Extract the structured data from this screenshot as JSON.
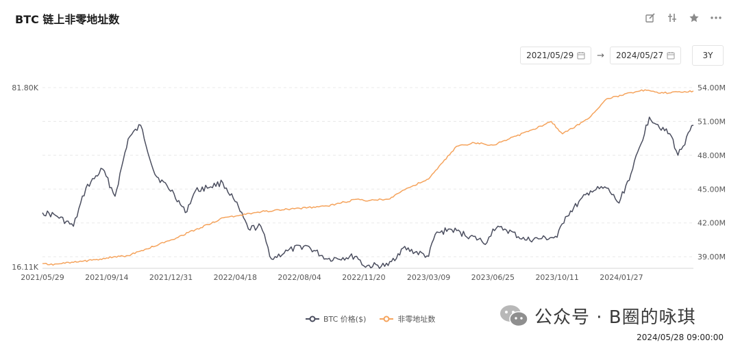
{
  "header": {
    "title": "BTC 链上非零地址数"
  },
  "toolbar": {
    "icons": [
      "edit-icon",
      "compare-icon",
      "star-icon",
      "more-icon"
    ]
  },
  "range": {
    "start": "2021/05/29",
    "end": "2024/05/27",
    "arrow": "→",
    "period": "3Y"
  },
  "legend": {
    "btc": "BTC 价格($)",
    "addr": "非零地址数"
  },
  "watermark": {
    "text": "公众号 · B圈的咏琪"
  },
  "timestamp": "2024/05/28 09:00:00",
  "colors": {
    "btc": "#4a4d5e",
    "addr": "#f5a35c",
    "grid": "#e8e8e8",
    "axis_text": "#555555"
  },
  "chart_data": {
    "type": "line",
    "x_tick_labels": [
      "2021/05/29",
      "2021/09/14",
      "2021/12/31",
      "2022/04/18",
      "2022/08/04",
      "2022/11/20",
      "2023/03/09",
      "2023/06/25",
      "2023/10/11",
      "2024/01/27"
    ],
    "left_axis": {
      "tick_labels": [
        "81.80K",
        "16.11K"
      ],
      "range": [
        16110,
        81800
      ]
    },
    "right_axis": {
      "tick_labels": [
        "54.00M",
        "51.00M",
        "48.00M",
        "45.00M",
        "42.00M",
        "39.00M"
      ],
      "range": [
        38100000,
        54000000
      ]
    },
    "grid": true,
    "legend_position": "bottom",
    "series": [
      {
        "name": "BTC 价格($)",
        "axis": "left",
        "x": [
          "2021/05/29",
          "2021/06/20",
          "2021/07/20",
          "2021/08/10",
          "2021/09/07",
          "2021/09/28",
          "2021/10/20",
          "2021/11/10",
          "2021/12/04",
          "2022/01/05",
          "2022/01/24",
          "2022/02/10",
          "2022/03/28",
          "2022/04/18",
          "2022/05/10",
          "2022/05/31",
          "2022/06/18",
          "2022/07/15",
          "2022/08/14",
          "2022/09/20",
          "2022/11/08",
          "2022/11/20",
          "2022/12/31",
          "2023/01/25",
          "2023/03/09",
          "2023/03/20",
          "2023/04/14",
          "2023/06/15",
          "2023/06/25",
          "2023/07/15",
          "2023/08/18",
          "2023/09/15",
          "2023/10/11",
          "2023/10/25",
          "2023/12/06",
          "2024/01/02",
          "2024/01/23",
          "2024/02/15",
          "2024/03/14",
          "2024/04/20",
          "2024/05/01",
          "2024/05/27"
        ],
        "values": [
          36000,
          35000,
          31000,
          45000,
          52000,
          42000,
          63000,
          68000,
          50000,
          43000,
          36000,
          44000,
          47000,
          40000,
          30000,
          31000,
          19000,
          22000,
          24000,
          19000,
          20000,
          16500,
          16600,
          23000,
          20000,
          28000,
          30000,
          25000,
          30000,
          30000,
          26000,
          26500,
          27000,
          34500,
          44000,
          45000,
          39500,
          52000,
          71000,
          64000,
          57000,
          68000
        ]
      },
      {
        "name": "非零地址数",
        "axis": "right",
        "x": [
          "2021/05/29",
          "2021/06/10",
          "2021/07/20",
          "2021/08/20",
          "2021/09/14",
          "2021/10/20",
          "2021/11/20",
          "2021/12/31",
          "2022/02/10",
          "2022/04/01",
          "2022/04/18",
          "2022/06/01",
          "2022/08/04",
          "2022/09/20",
          "2022/11/08",
          "2022/11/20",
          "2022/12/31",
          "2023/01/25",
          "2023/03/09",
          "2023/04/25",
          "2023/05/25",
          "2023/06/25",
          "2023/07/20",
          "2023/09/01",
          "2023/10/01",
          "2023/10/20",
          "2023/12/01",
          "2024/01/02",
          "2024/01/27",
          "2024/03/01",
          "2024/04/01",
          "2024/05/27"
        ],
        "values": [
          38400000,
          38300000,
          38500000,
          38700000,
          38900000,
          39100000,
          39700000,
          40500000,
          41400000,
          42500000,
          42600000,
          43000000,
          43300000,
          43500000,
          44100000,
          44000000,
          44100000,
          44900000,
          45900000,
          48800000,
          49100000,
          48900000,
          49400000,
          50300000,
          51000000,
          49900000,
          51200000,
          53000000,
          53300000,
          53800000,
          53500000,
          53700000
        ]
      }
    ]
  }
}
